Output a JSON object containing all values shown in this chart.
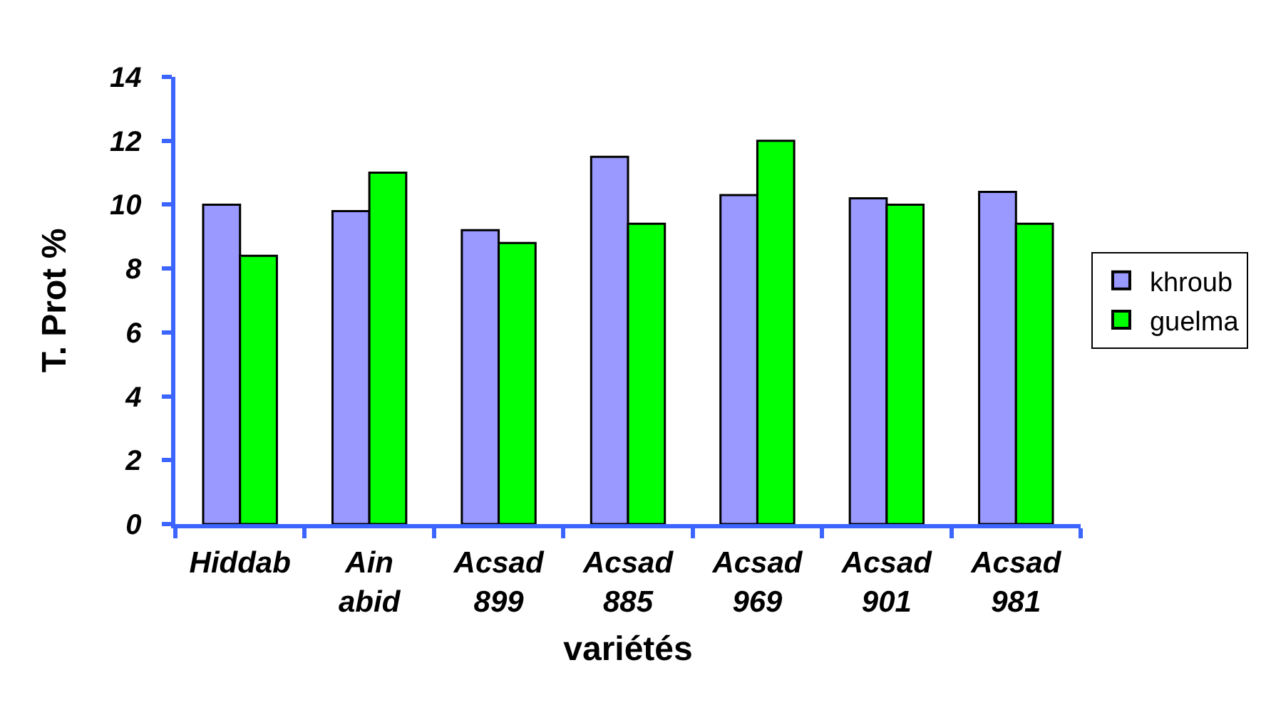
{
  "chart_data": {
    "type": "bar",
    "xlabel": "variétés",
    "ylabel": "T. Prot %",
    "categories": [
      "Hiddab",
      "Ain abid",
      "Acsad 899",
      "Acsad 885",
      "Acsad 969",
      "Acsad 901",
      "Acsad 981"
    ],
    "series": [
      {
        "name": "khroub",
        "color": "#9999ff",
        "values": [
          10.0,
          9.8,
          9.2,
          11.5,
          10.3,
          10.2,
          10.4
        ]
      },
      {
        "name": "guelma",
        "color": "#00ff00",
        "values": [
          8.4,
          11.0,
          8.8,
          9.4,
          12.0,
          10.0,
          9.4
        ]
      }
    ],
    "ylim": [
      0,
      14
    ],
    "yticks": [
      0,
      2,
      4,
      6,
      8,
      10,
      12,
      14
    ],
    "legend": "right"
  }
}
